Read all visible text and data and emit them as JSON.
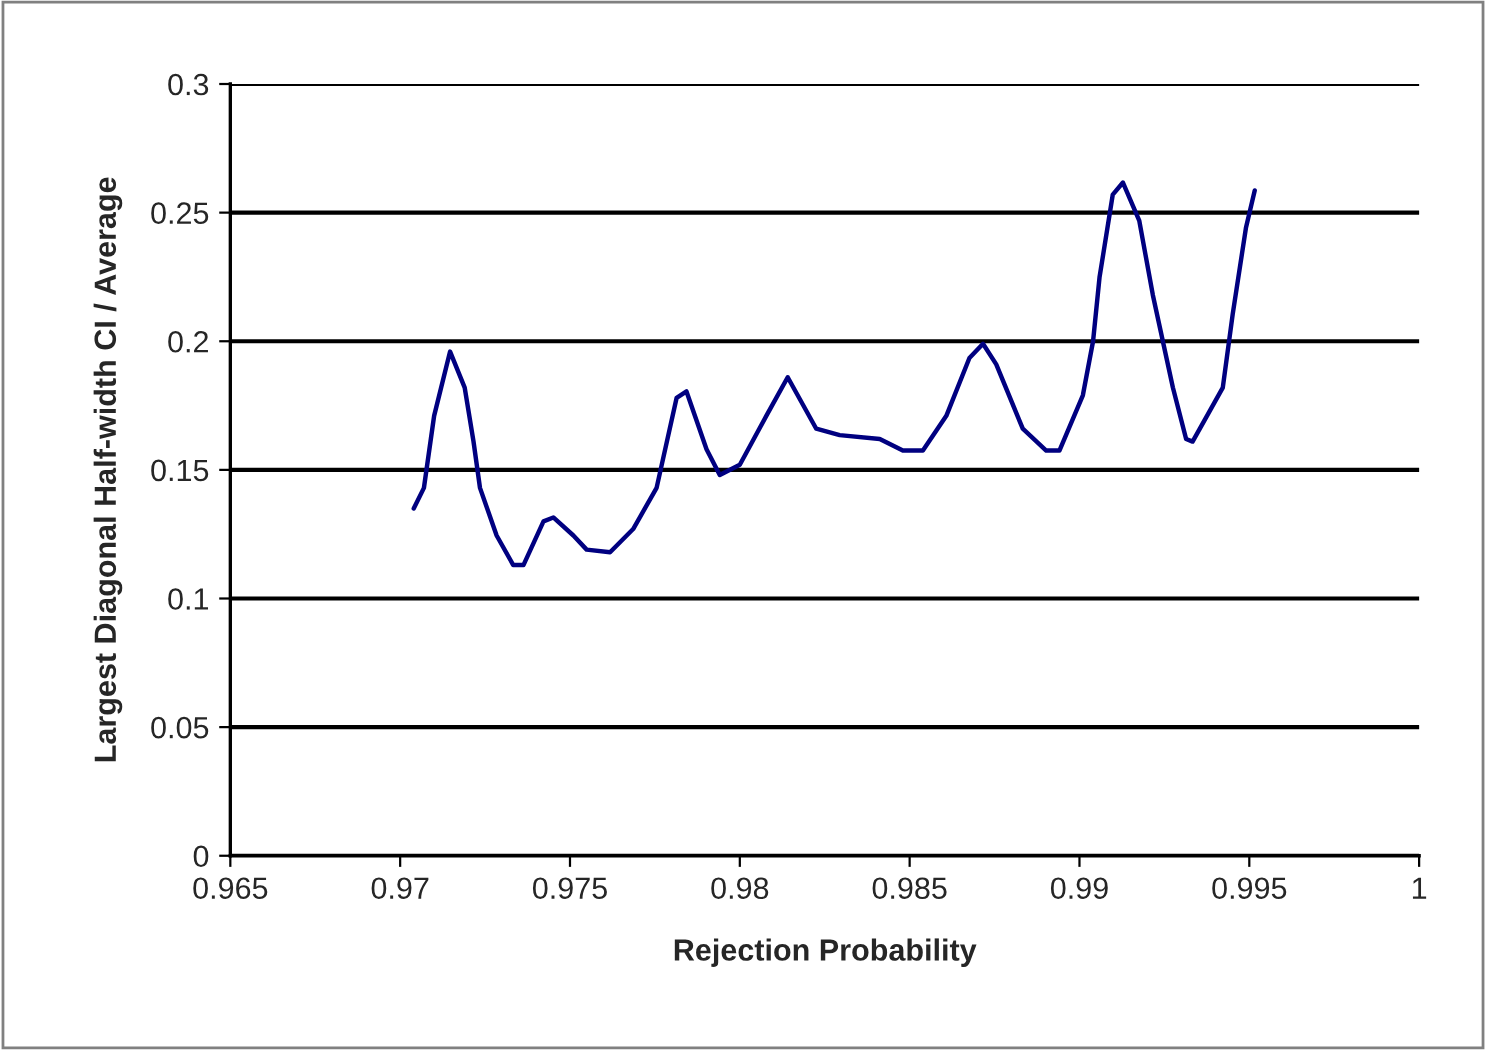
{
  "chart_data": {
    "type": "line",
    "xlabel": "Rejection Probability",
    "ylabel": "Largest Diagonal Half-width CI / Average",
    "xlim": [
      0.965,
      1
    ],
    "xticks": [
      0.965,
      0.97,
      0.975,
      0.98,
      0.985,
      0.99,
      0.995,
      1
    ],
    "ylim": [
      0,
      0.3
    ],
    "yticks": [
      0,
      0.05,
      0.1,
      0.15,
      0.2,
      0.25,
      0.3
    ],
    "grid": "y",
    "legend": false,
    "marker": "none",
    "line_style": "solid",
    "series": [
      {
        "color": "#000080",
        "x": [
          0.9704,
          0.9707,
          0.971,
          0.97147,
          0.9719,
          0.97216,
          0.97235,
          0.97284,
          0.97333,
          0.97363,
          0.97422,
          0.97451,
          0.9751,
          0.97549,
          0.97618,
          0.97686,
          0.97755,
          0.97814,
          0.97843,
          0.97902,
          0.97941,
          0.98,
          0.98078,
          0.98141,
          0.98225,
          0.98294,
          0.98412,
          0.9848,
          0.98539,
          0.98608,
          0.98676,
          0.98716,
          0.98755,
          0.98833,
          0.98902,
          0.98941,
          0.9901,
          0.9904,
          0.99059,
          0.99098,
          0.99128,
          0.99176,
          0.99216,
          0.99275,
          0.99314,
          0.99333,
          0.99422,
          0.99451,
          0.9949,
          0.99516
        ],
        "values": [
          0.135,
          0.143,
          0.171,
          0.196,
          0.182,
          0.161,
          0.143,
          0.1245,
          0.113,
          0.113,
          0.13,
          0.1315,
          0.1245,
          0.119,
          0.118,
          0.127,
          0.143,
          0.178,
          0.1805,
          0.158,
          0.148,
          0.152,
          0.171,
          0.186,
          0.166,
          0.1635,
          0.162,
          0.1575,
          0.1575,
          0.171,
          0.1935,
          0.199,
          0.191,
          0.166,
          0.1575,
          0.1575,
          0.179,
          0.2,
          0.2248,
          0.257,
          0.2617,
          0.2469,
          0.218,
          0.182,
          0.162,
          0.161,
          0.182,
          0.2104,
          0.244,
          0.2586
        ]
      }
    ]
  }
}
